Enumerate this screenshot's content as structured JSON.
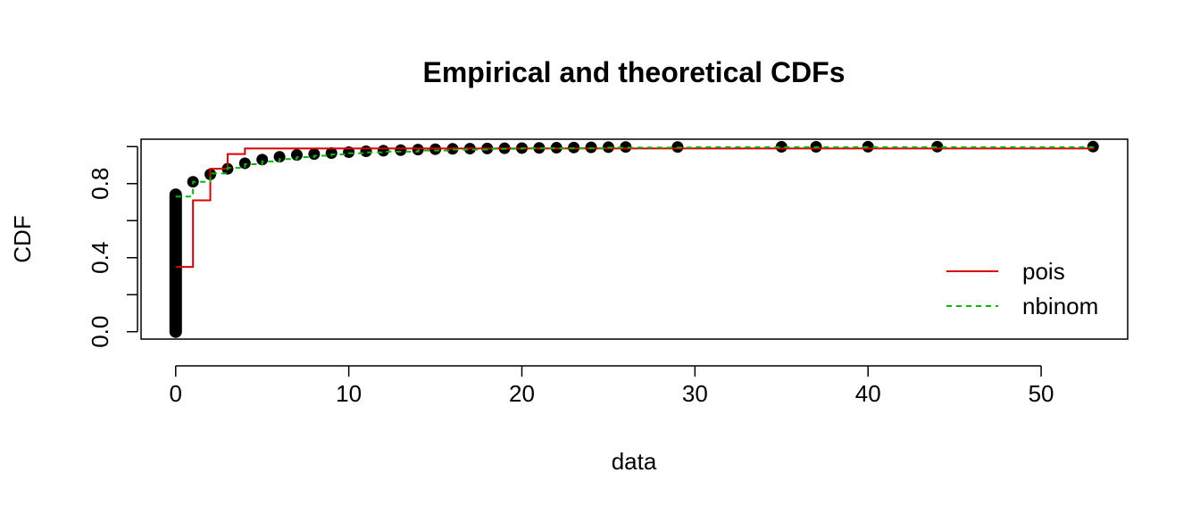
{
  "chart_data": {
    "type": "line",
    "title": "Empirical and theoretical CDFs",
    "xlabel": "data",
    "ylabel": "CDF",
    "xlim": [
      -2,
      55
    ],
    "ylim": [
      -0.04,
      1.04
    ],
    "x_ticks": [
      0,
      10,
      20,
      30,
      40,
      50
    ],
    "x_tick_labels": [
      "0",
      "10",
      "20",
      "30",
      "40",
      "50"
    ],
    "y_ticks": [
      0.0,
      0.2,
      0.4,
      0.6,
      0.8,
      1.0
    ],
    "y_tick_labels": [
      "0.0",
      "",
      "0.4",
      "",
      "0.8",
      ""
    ],
    "grid": false,
    "legend_position": "bottom-right",
    "empirical": {
      "x": [
        1,
        2,
        3,
        4,
        5,
        6,
        7,
        8,
        9,
        10,
        11,
        12,
        13,
        14,
        15,
        16,
        17,
        18,
        19,
        20,
        21,
        22,
        23,
        24,
        25,
        26,
        29,
        35,
        37,
        40,
        44,
        53
      ],
      "y": [
        0.81,
        0.85,
        0.88,
        0.91,
        0.93,
        0.945,
        0.955,
        0.96,
        0.965,
        0.97,
        0.975,
        0.978,
        0.981,
        0.984,
        0.986,
        0.988,
        0.989,
        0.99,
        0.991,
        0.992,
        0.993,
        0.994,
        0.995,
        0.996,
        0.997,
        0.998,
        0.998,
        0.999,
        0.999,
        0.9995,
        0.9998,
        1.0
      ],
      "zero_column_range": [
        0.0,
        0.74
      ],
      "color": "#000000"
    },
    "series": [
      {
        "name": "pois",
        "style": "solid",
        "color": "#dd0000",
        "x": [
          0,
          1,
          2,
          3,
          4,
          53
        ],
        "y": [
          0.35,
          0.71,
          0.88,
          0.96,
          0.99,
          1.0
        ]
      },
      {
        "name": "nbinom",
        "style": "dashed",
        "color": "#00bb00",
        "x": [
          0,
          1,
          2,
          3,
          4,
          5,
          6,
          7,
          8,
          9,
          10,
          11,
          12,
          14,
          16,
          18,
          20,
          25,
          30,
          53
        ],
        "y": [
          0.73,
          0.81,
          0.855,
          0.885,
          0.905,
          0.92,
          0.933,
          0.943,
          0.951,
          0.958,
          0.964,
          0.969,
          0.973,
          0.979,
          0.984,
          0.988,
          0.991,
          0.995,
          0.997,
          1.0
        ]
      }
    ]
  }
}
